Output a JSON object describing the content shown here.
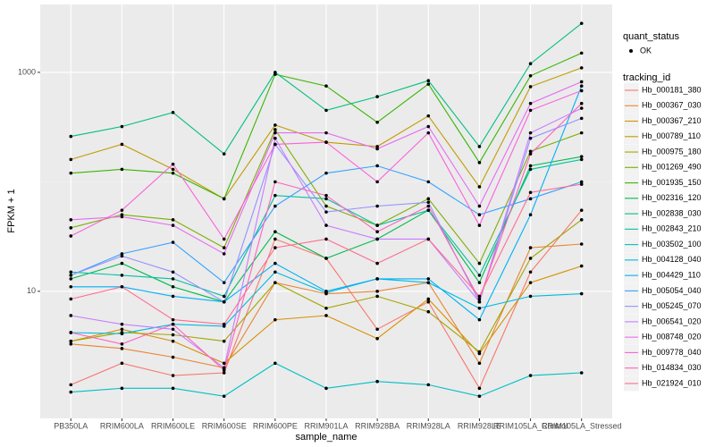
{
  "chart_data": {
    "type": "line",
    "x_label": "sample_name",
    "y_label": "FPKM + 1",
    "categories": [
      "PB350LA",
      "RRIM600LA",
      "RRIM600LE",
      "RRIM600SE",
      "RRIM600PE",
      "RRIM901LA",
      "RRIM928BA",
      "RRIM928LA",
      "RRIM928LE",
      "RRIM105LA_Control",
      "RRIM105LA_Stressed"
    ],
    "log_y": true,
    "ylim": [
      0.69,
      4170
    ],
    "yticks": [
      10,
      1000
    ],
    "grid": true,
    "point_legend_title": "quant_status",
    "point_legend_label": "OK",
    "legend_title": "tracking_id",
    "legend_position": "right",
    "series": [
      {
        "name": "Hb_000181_380",
        "color": "#F8766D",
        "values": [
          1.4,
          2.2,
          1.7,
          1.8,
          30,
          20,
          4.5,
          8,
          1.3,
          15,
          55
        ]
      },
      {
        "name": "Hb_000367_030",
        "color": "#EA8331",
        "values": [
          3.3,
          3.0,
          2.5,
          2.0,
          12,
          9.5,
          10,
          12,
          2.2,
          25,
          27
        ]
      },
      {
        "name": "Hb_000367_210",
        "color": "#D89000",
        "values": [
          3.5,
          4.5,
          3.5,
          2.2,
          5.5,
          6,
          3.7,
          8.5,
          2.7,
          12,
          17
        ]
      },
      {
        "name": "Hb_000789_110",
        "color": "#C09B00",
        "values": [
          160,
          220,
          130,
          70,
          330,
          230,
          210,
          400,
          90,
          740,
          1100
        ]
      },
      {
        "name": "Hb_000975_180",
        "color": "#A3A500",
        "values": [
          3.5,
          4.2,
          4.0,
          3.5,
          12,
          7,
          9,
          6.5,
          2.8,
          20,
          45
        ]
      },
      {
        "name": "Hb_001269_490",
        "color": "#7CAE00",
        "values": [
          38,
          50,
          45,
          25,
          300,
          60,
          40,
          70,
          18,
          190,
          280
        ]
      },
      {
        "name": "Hb_001935_150",
        "color": "#39B600",
        "values": [
          120,
          130,
          120,
          70,
          960,
          750,
          350,
          780,
          150,
          930,
          1500
        ]
      },
      {
        "name": "Hb_002316_120",
        "color": "#00BB4E",
        "values": [
          13,
          18,
          11,
          8,
          35,
          20,
          30,
          55,
          12,
          140,
          170
        ]
      },
      {
        "name": "Hb_002838_030",
        "color": "#00BF7D",
        "values": [
          260,
          320,
          430,
          180,
          1000,
          450,
          600,
          840,
          210,
          1200,
          2800
        ]
      },
      {
        "name": "Hb_002843_210",
        "color": "#00C1A3",
        "values": [
          15,
          14,
          13,
          9,
          75,
          70,
          40,
          55,
          14,
          130,
          160
        ]
      },
      {
        "name": "Hb_003502_100",
        "color": "#00BFC4",
        "values": [
          1.2,
          1.3,
          1.3,
          1.1,
          2.2,
          1.3,
          1.5,
          1.4,
          1.1,
          1.7,
          1.8
        ]
      },
      {
        "name": "Hb_004128_040",
        "color": "#00BAE0",
        "values": [
          4.2,
          4.1,
          5,
          4.8,
          15,
          9.7,
          13,
          12,
          7,
          9,
          9.5
        ]
      },
      {
        "name": "Hb_004429_110",
        "color": "#00B0F6",
        "values": [
          11,
          11,
          9,
          8,
          18,
          10,
          13,
          13,
          5.5,
          50,
          750
        ]
      },
      {
        "name": "Hb_005054_040",
        "color": "#35A2FF",
        "values": [
          14,
          22,
          28,
          12,
          60,
          120,
          140,
          100,
          50,
          70,
          100
        ]
      },
      {
        "name": "Hb_005245_070",
        "color": "#9590FF",
        "values": [
          14,
          21,
          15,
          8,
          220,
          53,
          60,
          65,
          8,
          250,
          380
        ]
      },
      {
        "name": "Hb_006541_020",
        "color": "#C77CFF",
        "values": [
          6,
          5,
          4.5,
          2,
          250,
          40,
          30,
          30,
          8,
          280,
          470
        ]
      },
      {
        "name": "Hb_008748_020",
        "color": "#E76BF3",
        "values": [
          45,
          48,
          40,
          22,
          280,
          280,
          200,
          320,
          60,
          520,
          820
        ]
      },
      {
        "name": "Hb_009778_040",
        "color": "#FA62DB",
        "values": [
          32,
          55,
          145,
          30,
          220,
          230,
          100,
          280,
          40,
          450,
          680
        ]
      },
      {
        "name": "Hb_014834_030",
        "color": "#FF62BC",
        "values": [
          4.2,
          3.3,
          5,
          1.9,
          100,
          75,
          35,
          60,
          8.5,
          180,
          520
        ]
      },
      {
        "name": "Hb_021924_010",
        "color": "#FF6C91",
        "values": [
          8.5,
          11,
          5.5,
          5,
          25,
          30,
          18,
          30,
          9,
          80,
          95
        ]
      }
    ]
  }
}
